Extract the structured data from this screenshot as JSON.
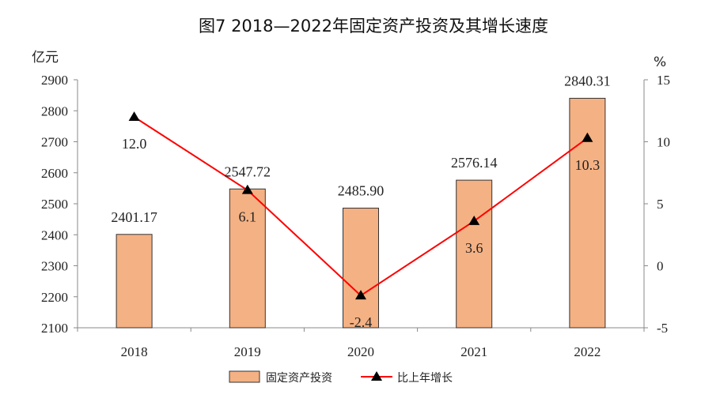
{
  "chart_data": {
    "type": "bar",
    "title": "图7  2018—2022年固定资产投资及其增长速度",
    "categories": [
      "2018",
      "2019",
      "2020",
      "2021",
      "2022"
    ],
    "series": [
      {
        "name": "固定资产投资",
        "type": "bar",
        "axis": "left",
        "values": [
          2401.17,
          2547.72,
          2485.9,
          2576.14,
          2840.31
        ],
        "labels": [
          "2401.17",
          "2547.72",
          "2485.90",
          "2576.14",
          "2840.31"
        ]
      },
      {
        "name": "比上年增长",
        "type": "line",
        "axis": "right",
        "values": [
          12.0,
          6.1,
          -2.4,
          3.6,
          10.3
        ],
        "labels": [
          "12.0",
          "6.1",
          "-2.4",
          "3.6",
          "10.3"
        ]
      }
    ],
    "y_left": {
      "unit": "亿元",
      "lim": [
        2100,
        2900
      ],
      "ticks": [
        "2100",
        "2200",
        "2300",
        "2400",
        "2500",
        "2600",
        "2700",
        "2800",
        "2900"
      ]
    },
    "y_right": {
      "unit": "%",
      "lim": [
        -5,
        15
      ],
      "ticks": [
        "-5",
        "0",
        "5",
        "10",
        "15"
      ]
    },
    "legend_placement": "bottom",
    "grid": false,
    "colors": {
      "bar_fill": "#f4b183",
      "bar_stroke": "#333333",
      "line": "#ff0000",
      "marker": "#000000"
    }
  }
}
